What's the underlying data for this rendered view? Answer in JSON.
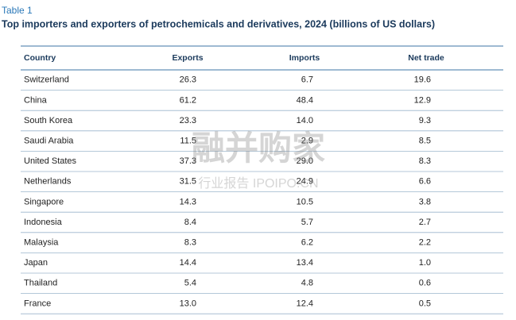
{
  "label": "Table 1",
  "title": "Top importers and exporters of petrochemicals and derivatives, 2024 (billions of US dollars)",
  "table": {
    "header": [
      "Country",
      "Exports",
      "Imports",
      "Net trade"
    ],
    "rows": [
      [
        "Switzerland",
        "26.3",
        "6.7",
        "19.6"
      ],
      [
        "China",
        "61.2",
        "48.4",
        "12.9"
      ],
      [
        "South Korea",
        "23.3",
        "14.0",
        "9.3"
      ],
      [
        "Saudi Arabia",
        "11.5",
        "2.9",
        "8.5"
      ],
      [
        "United States",
        "37.3",
        "29.0",
        "8.3"
      ],
      [
        "Netherlands",
        "31.5",
        "24.9",
        "6.6"
      ],
      [
        "Singapore",
        "14.3",
        "10.5",
        "3.8"
      ],
      [
        "Indonesia",
        "8.4",
        "5.7",
        "2.7"
      ],
      [
        "Malaysia",
        "8.3",
        "6.2",
        "2.2"
      ],
      [
        "Japan",
        "14.4",
        "13.4",
        "1.0"
      ],
      [
        "Thailand",
        "5.4",
        "4.8",
        "0.6"
      ],
      [
        "France",
        "13.0",
        "12.4",
        "0.5"
      ]
    ]
  },
  "watermark": {
    "main": "融并购家",
    "sub": "行业报告 IPOIPO.CN"
  }
}
